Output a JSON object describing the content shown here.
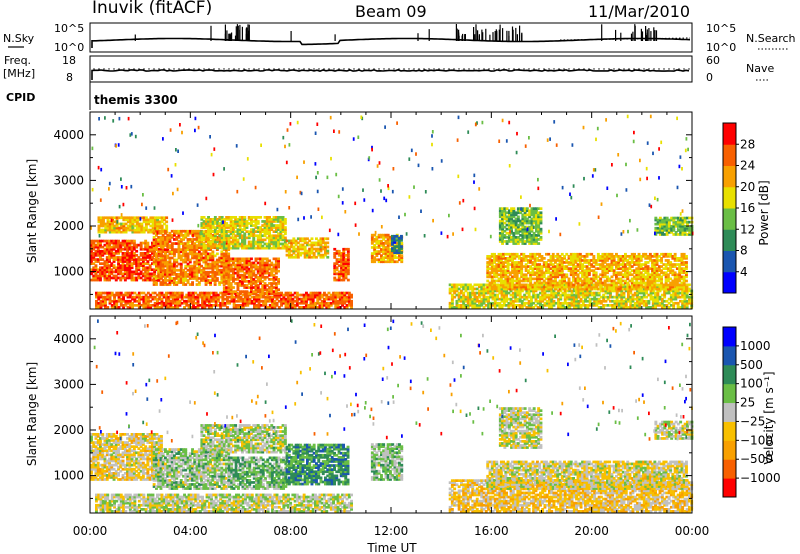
{
  "header": {
    "station": "Inuvik (fitACF)",
    "beam": "Beam 09",
    "date": "11/Mar/2010"
  },
  "top_panels": {
    "nsky_label": "N.Sky",
    "nsky_ticks": [
      "10^5",
      "10^0"
    ],
    "nsearch_label": "N.Search",
    "nsearch_ticks": [
      "10^5",
      "10^0"
    ],
    "freq_label": "Freq.",
    "freq_unit": "[MHz]",
    "freq_ticks": [
      "18",
      "8"
    ],
    "nave_label": "Nave",
    "nave_ticks": [
      "60",
      "0"
    ],
    "cpid_label": "CPID",
    "cpid_value": "themis 3300"
  },
  "chart_data": [
    {
      "type": "heatmap",
      "panel": "power",
      "ylabel": "Slant Range [km]",
      "yticks": [
        "1000",
        "2000",
        "3000",
        "4000"
      ],
      "ylim": [
        180,
        4500
      ],
      "xlim": [
        0,
        24
      ],
      "colorbar_label": "Power [dB]",
      "colorbar_ticks": [
        "4",
        "8",
        "12",
        "16",
        "20",
        "24",
        "28"
      ],
      "colorbar_range": [
        0,
        32
      ],
      "colors": [
        "#0000ff",
        "#1a56b0",
        "#2e8b57",
        "#6abe45",
        "#e8e000",
        "#f8a000",
        "#f86000",
        "#ff0000"
      ],
      "regions": [
        {
          "t0": 0.0,
          "t1": 2.8,
          "r0": 800,
          "r1": 1700,
          "v": 27
        },
        {
          "t0": 0.2,
          "t1": 10.4,
          "r0": 200,
          "r1": 550,
          "v": 26
        },
        {
          "t0": 0.3,
          "t1": 3.0,
          "r0": 1850,
          "r1": 2200,
          "v": 20
        },
        {
          "t0": 2.5,
          "t1": 5.5,
          "r0": 700,
          "r1": 1900,
          "v": 24
        },
        {
          "t0": 4.4,
          "t1": 7.8,
          "r0": 1500,
          "r1": 2200,
          "v": 18
        },
        {
          "t0": 5.3,
          "t1": 7.5,
          "r0": 500,
          "r1": 1300,
          "v": 25
        },
        {
          "t0": 7.8,
          "t1": 9.5,
          "r0": 1300,
          "r1": 1750,
          "v": 20
        },
        {
          "t0": 9.7,
          "t1": 10.3,
          "r0": 800,
          "r1": 1500,
          "v": 26
        },
        {
          "t0": 11.2,
          "t1": 12.4,
          "r0": 1200,
          "r1": 1800,
          "v": 22
        },
        {
          "t0": 12.0,
          "t1": 12.4,
          "r0": 1400,
          "r1": 1800,
          "v": 8
        },
        {
          "t0": 14.3,
          "t1": 24.0,
          "r0": 200,
          "r1": 700,
          "v": 18
        },
        {
          "t0": 15.8,
          "t1": 23.8,
          "r0": 600,
          "r1": 1400,
          "v": 21
        },
        {
          "t0": 16.3,
          "t1": 18.0,
          "r0": 1600,
          "r1": 2400,
          "v": 14
        },
        {
          "t0": 22.5,
          "t1": 24.0,
          "r0": 1800,
          "r1": 2200,
          "v": 14
        }
      ]
    },
    {
      "type": "heatmap",
      "panel": "velocity",
      "ylabel": "Slant Range [km]",
      "yticks": [
        "1000",
        "2000",
        "3000",
        "4000"
      ],
      "ylim": [
        180,
        4500
      ],
      "xlim": [
        0,
        24
      ],
      "xlabel": "Time UT",
      "xticks": [
        "00:00",
        "04:00",
        "08:00",
        "12:00",
        "16:00",
        "20:00",
        "00:00"
      ],
      "colorbar_label": "Velocity [m s⁻¹]",
      "colorbar_ticks": [
        "1000",
        "500",
        "100",
        "25",
        "−25",
        "−100",
        "−500",
        "−1000"
      ],
      "colorbar_range": [
        -1200,
        1200
      ],
      "colors": [
        "#ff0000",
        "#f86000",
        "#f8a000",
        "#f8c000",
        "#c0c0c0",
        "#6abe45",
        "#2e8b57",
        "#1a56b0",
        "#0000ff"
      ],
      "regions": [
        {
          "t0": 0.0,
          "t1": 2.8,
          "r0": 900,
          "r1": 1900,
          "v": -150
        },
        {
          "t0": 0.2,
          "t1": 10.4,
          "r0": 200,
          "r1": 600,
          "v": 20
        },
        {
          "t0": 2.5,
          "t1": 5.5,
          "r0": 700,
          "r1": 1600,
          "v": 150
        },
        {
          "t0": 4.4,
          "t1": 7.8,
          "r0": 1500,
          "r1": 2100,
          "v": 80
        },
        {
          "t0": 5.5,
          "t1": 7.8,
          "r0": 700,
          "r1": 1400,
          "v": 300
        },
        {
          "t0": 7.8,
          "t1": 10.3,
          "r0": 800,
          "r1": 1700,
          "v": 500
        },
        {
          "t0": 11.2,
          "t1": 12.4,
          "r0": 900,
          "r1": 1700,
          "v": 200
        },
        {
          "t0": 14.3,
          "t1": 24.0,
          "r0": 200,
          "r1": 900,
          "v": -250
        },
        {
          "t0": 15.8,
          "t1": 23.8,
          "r0": 700,
          "r1": 1300,
          "v": -80
        },
        {
          "t0": 16.3,
          "t1": 18.0,
          "r0": 1600,
          "r1": 2500,
          "v": 10
        },
        {
          "t0": 22.5,
          "t1": 24.0,
          "r0": 1800,
          "r1": 2200,
          "v": 10
        }
      ]
    }
  ]
}
